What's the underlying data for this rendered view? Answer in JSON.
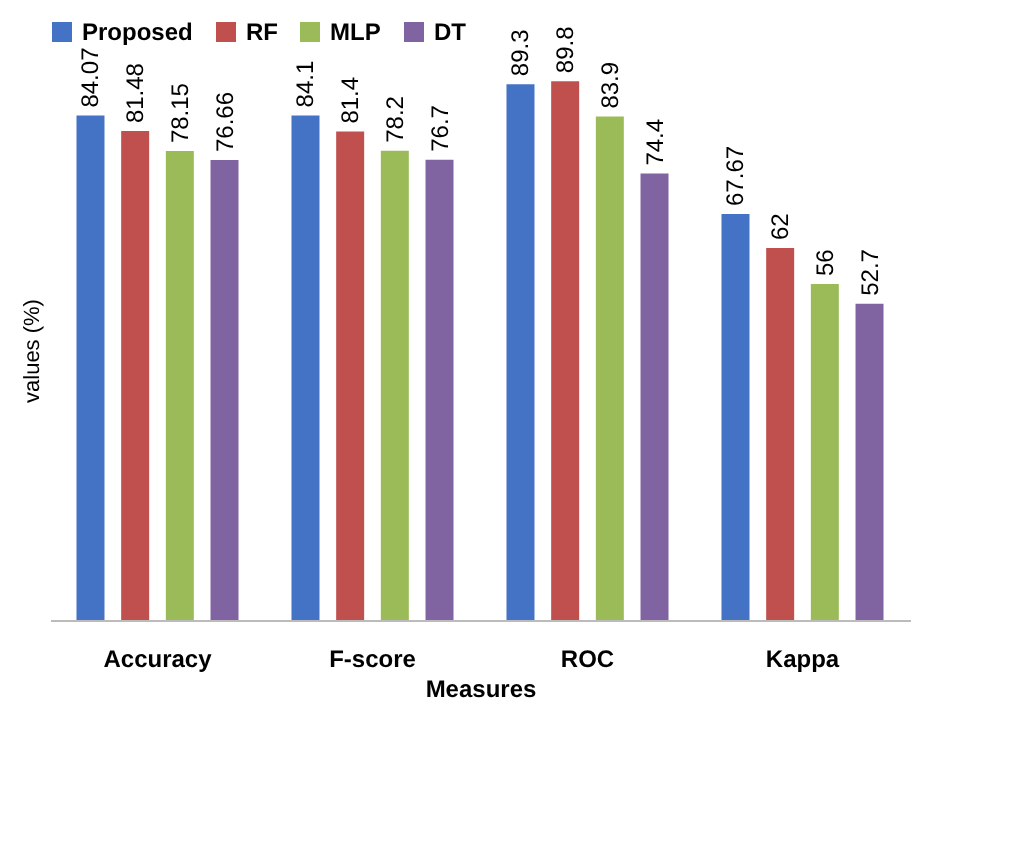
{
  "chart_data": {
    "type": "bar",
    "xlabel": "Measures",
    "ylabel": "values (%)",
    "categories": [
      "Accuracy",
      "F-score",
      "ROC",
      "Kappa"
    ],
    "series": [
      {
        "name": "Proposed",
        "color": "#4472c4",
        "values": [
          84.07,
          84.1,
          89.3,
          67.67
        ]
      },
      {
        "name": "RF",
        "color": "#c0504d",
        "values": [
          81.48,
          81.4,
          89.8,
          62
        ]
      },
      {
        "name": "MLP",
        "color": "#9bbb59",
        "values": [
          78.15,
          78.2,
          83.9,
          56
        ]
      },
      {
        "name": "DT",
        "color": "#8064a2",
        "values": [
          76.66,
          76.7,
          74.4,
          52.7
        ]
      }
    ],
    "data_labels": true,
    "legend": "top",
    "grid": false,
    "tick_labels": "x"
  }
}
